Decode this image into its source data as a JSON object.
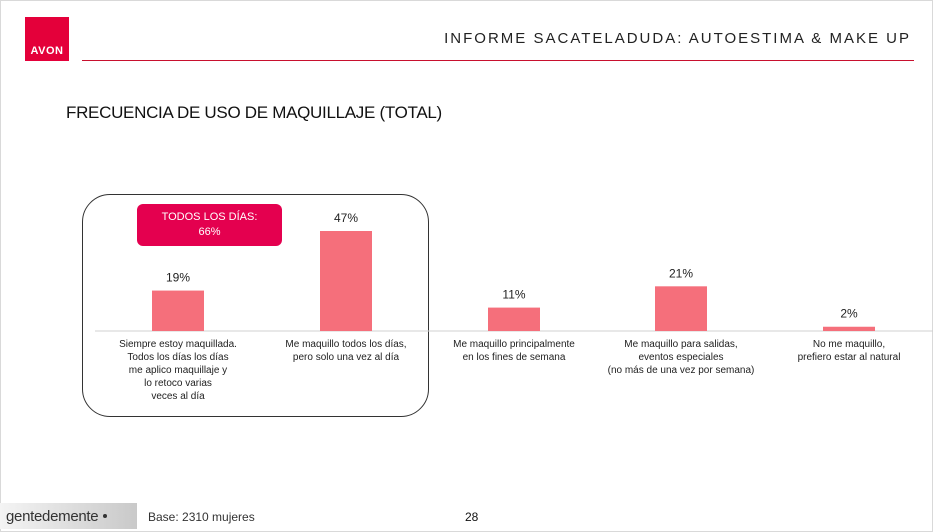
{
  "header": {
    "brand": "AVON",
    "report_title": "INFORME SACATELADUDA: AUTOESTIMA  & MAKE UP"
  },
  "section_title": "FRECUENCIA DE USO DE MAQUILLAJE (TOTAL)",
  "callout": {
    "line1": "TODOS LOS DÍAS:",
    "line2": "66%"
  },
  "chart_data": {
    "type": "bar",
    "categories": [
      [
        "Siempre estoy maquillada.",
        "Todos los días los días",
        "me aplico maquillaje y",
        "lo retoco varias",
        "veces al día"
      ],
      [
        "Me maquillo todos los días,",
        "pero solo una vez al día"
      ],
      [
        "Me maquillo principalmente",
        "en los fines de semana"
      ],
      [
        "Me maquillo para salidas,",
        "eventos especiales",
        "(no más de una vez por semana)"
      ],
      [
        "No me maquillo,",
        "prefiero estar al natural"
      ]
    ],
    "values": [
      19,
      47,
      11,
      21,
      2
    ],
    "value_labels": [
      "19%",
      "47%",
      "11%",
      "21%",
      "2%"
    ],
    "bar_color": "#f56f7b",
    "ylim": [
      0,
      50
    ],
    "grid": false,
    "legend": "none"
  },
  "footer": {
    "agency_part1": "gentede",
    "agency_part2": "mente",
    "base_note": "Base: 2310 mujeres",
    "page_number": "28"
  },
  "colors": {
    "brand_red": "#e4003a",
    "accent_line": "#c8102e",
    "callout_bg": "#e4004f"
  }
}
